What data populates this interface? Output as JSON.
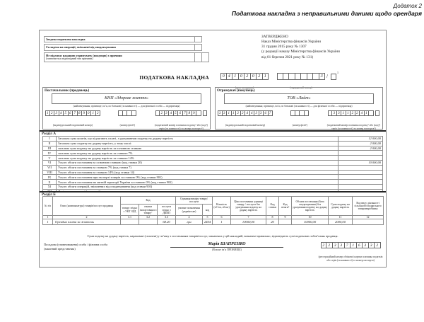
{
  "header": {
    "appendix": "Додаток 2",
    "title": "Податкова накладна з неправильними даними щодо орендаря"
  },
  "approved": {
    "lines": [
      "ЗАТВЕРДЖЕНО",
      "Наказ Міністерства фінансів України",
      "31 грудня 2015 року № 1307",
      "(у редакції наказу Міністерства фінансів України",
      "від 01 березня 2021 року № 131)"
    ]
  },
  "flags": {
    "rows": [
      {
        "label": "Зведена податкова накладна"
      },
      {
        "label": "Складена на операції, звільнені від оподаткування"
      },
      {
        "label": "Не підлягає наданню отримувачу (покупцю) з причини",
        "sublabel": "(зазначається відповідний тип причини)"
      }
    ]
  },
  "invoice": {
    "title": "ПОДАТКОВА НАКЛАДНА",
    "date_digits": "04102021",
    "date_caption": "(дата складання)",
    "number_digits": "       3",
    "number_caption": "(порядковий номер)",
    "number_suffix_note": "1"
  },
  "seller": {
    "title": "Постачальник (продавець)",
    "name": "КНП «Здорове життя»",
    "name_caption": "(найменування; прізвище, ім’я, по батькові (за наявності) — для фізичної особи — підприємця)",
    "ipn_digits": "123456789012",
    "ipn_caption": "(індивідуальний податковий номер)",
    "branch_digits": "    ",
    "branch_caption": "(номер філії²)",
    "taxnum_digits": " 23456789 ",
    "taxnum_caption": "(податковий номер платника податку³ або (код⁴)",
    "taxnum_caption2": "серія (за наявності) та номер паспорта⁵)"
  },
  "buyer": {
    "title": "Отримувач (покупець)",
    "name": "ТОВ «Лайт»",
    "name_caption": "(найменування; прізвище, ім’я, по батькові (за наявності) — для фізичної особи — підприємця)",
    "ipn_digits": "331122443367",
    "ipn_caption": "(індивідуальний податковий номер)",
    "branch_digits": "    ",
    "branch_caption": "(номер філії²)",
    "taxnum_digits": " 33112241 ",
    "taxnum_caption": "(податковий номер платника податку³ або (код⁴)",
    "taxnum_caption2": "серія (за наявності) та номер паспорта⁵)"
  },
  "sectionA": {
    "title": "Розділ А",
    "rows": [
      {
        "num": "I",
        "label": "Загальна сума коштів, що підлягають сплаті, з урахуванням податку на додану вартість",
        "value": "12 000,00"
      },
      {
        "num": "II",
        "label": "Загальна сума податку на додану вартість, у тому числі:",
        "value": "2 000,00"
      },
      {
        "num": "III",
        "label": "загальна сума податку на додану вартість за основною ставкою",
        "value": "2 000,00"
      },
      {
        "num": "IV",
        "label": "загальна сума податку на додану вартість за ставкою 7%",
        "value": ""
      },
      {
        "num": "V",
        "label": "загальна сума податку на додану вартість за ставкою 14%",
        "value": ""
      },
      {
        "num": "VI",
        "label": "Усього обсяги постачання за основною ставкою (код ставки 20)",
        "value": "10 000,00"
      },
      {
        "num": "VII",
        "label": "Усього обсяги постачання за ставкою 7% (код ставки 7)",
        "value": ""
      },
      {
        "num": "VIII",
        "label": "Усього обсяги постачання за ставкою 14% (код ставки 14)",
        "value": ""
      },
      {
        "num": "IX",
        "label": "Усього обсяги постачання при експорті товарів за ставкою 0% (код ставки 901)",
        "value": ""
      },
      {
        "num": "X",
        "label": "Усього обсяги постачання на митній території України за ставкою 0% (код ставки 902)",
        "value": ""
      },
      {
        "num": "XI",
        "label": "Усього обсяги операцій, звільнених від оподаткування (код ставки 903)",
        "value": ""
      },
      {
        "num": "XII",
        "label": "Дані щодо зворотної (заставної) тари",
        "value": ""
      }
    ]
  },
  "sectionB": {
    "title": "Розділ Б",
    "headers": {
      "col_num": "№ з/п",
      "col_desc": "Опис (номенклатура) товарів/послуг продавця",
      "col_code_group": "Код",
      "col_code_ukt": "товару згідно з УКТ ЗЕД",
      "col_code_import": "ознаки імпортованого товару⁷",
      "col_code_dkpp": "послуги згідно з ДКПП",
      "col_unit_group": "Одиниця виміру товару/послуги",
      "col_unit_name": "умовне позначення (українське)",
      "col_unit_code": "код",
      "col_qty": "Кількість (об’єм, обсяг)",
      "col_price": "Ціна постачання одиниці товару / послуги без урахування податку на додану вартість",
      "col_rate": "Код ставки",
      "col_benefit": "Код пільги⁸",
      "col_volume": "Обсяги постачання (база оподаткування) без урахування податку на додану вартість",
      "col_vat": "Сума податку на додану вартість",
      "col_activity": "Код виду діяльності сільськогосподарського товаровиробника"
    },
    "colnums": [
      "1",
      "2",
      "3.1",
      "3.2",
      "3.3",
      "4",
      "5",
      "6",
      "7",
      "8",
      "9",
      "10",
      "11",
      "12"
    ],
    "row": {
      "num": "1",
      "desc": "Орендна плата за жовтень",
      "ukt": "",
      "import_flag": "",
      "dkpp": "68.20",
      "unit": "грн",
      "unit_code": "2454",
      "qty": "1",
      "price": "10000,00",
      "rate": "20",
      "benefit": "",
      "volume": "10000,00",
      "vat": "2000,00",
      "activity": ""
    }
  },
  "footer": {
    "statement": "Суми податку на додану вартість, нараховані (сплачені) у зв’язку з постачанням товарів/послуг, зазначених у цій накладній, визначені правильно, відповідають сумі податкових зобов’язань продавця.",
    "official_line1": "Посадова (уповноважена) особа / фізична особа",
    "official_line2": "(законний представник)",
    "signature_name": "Марія ШАПРЕНКО",
    "signature_caption": "(Власне ім’я ПРІЗВИЩЕ)",
    "reg_digits": "2233716332",
    "reg_caption": "(реєстраційний номер облікової картки платника податків",
    "reg_caption2": "або серія (за наявності) та номер паспорта)"
  }
}
